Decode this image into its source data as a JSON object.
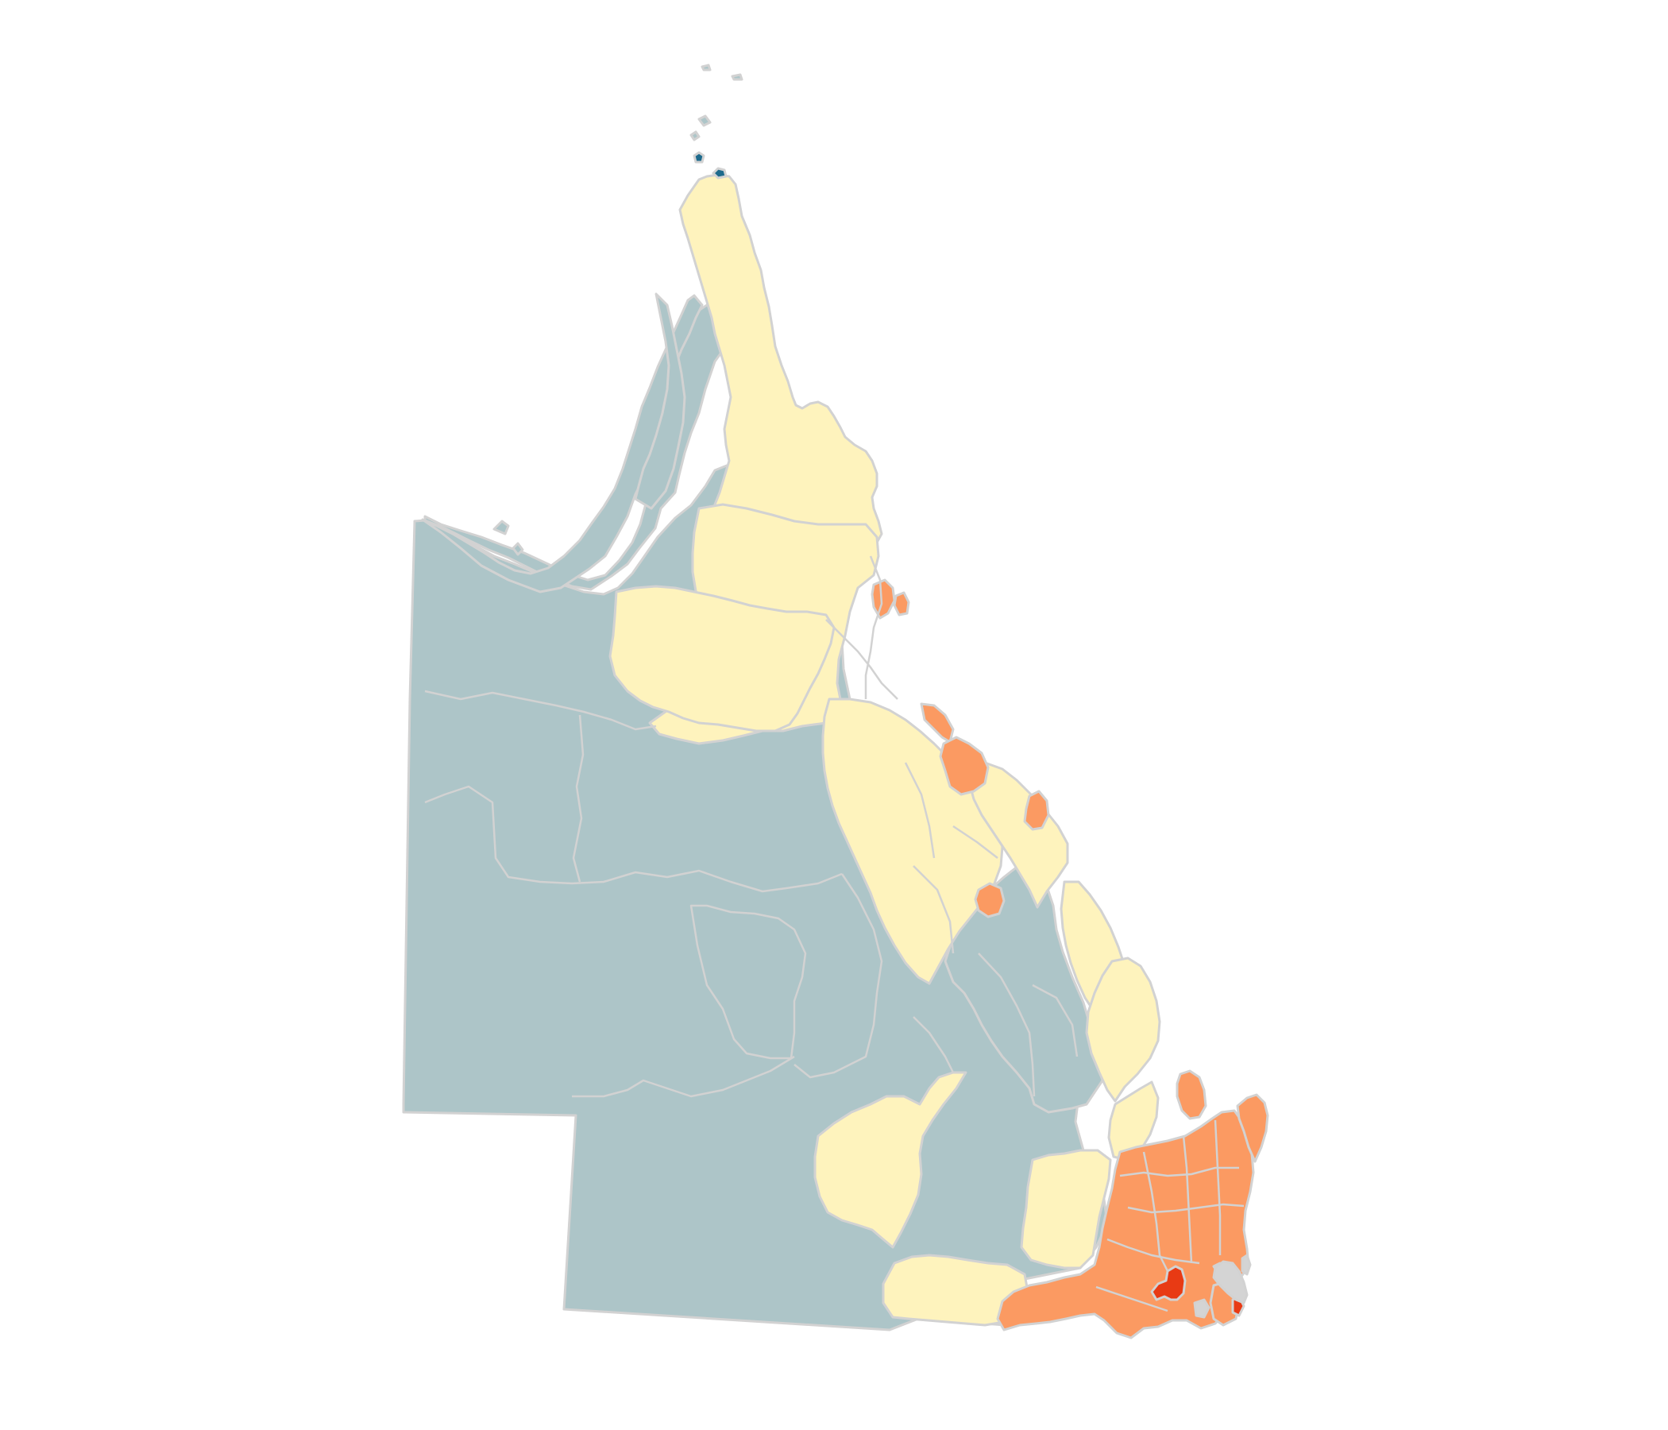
{
  "map": {
    "region": "Queensland",
    "colors": {
      "background": "#ffffff",
      "border": "#d2d2d2",
      "class_lowest": "#adc5c8",
      "class_low": "#fef3bd",
      "class_medium": "#fb9a62",
      "class_high": "#e83a14",
      "class_highest": "#1d6a8c",
      "no_data": "#d4d4d4"
    }
  }
}
